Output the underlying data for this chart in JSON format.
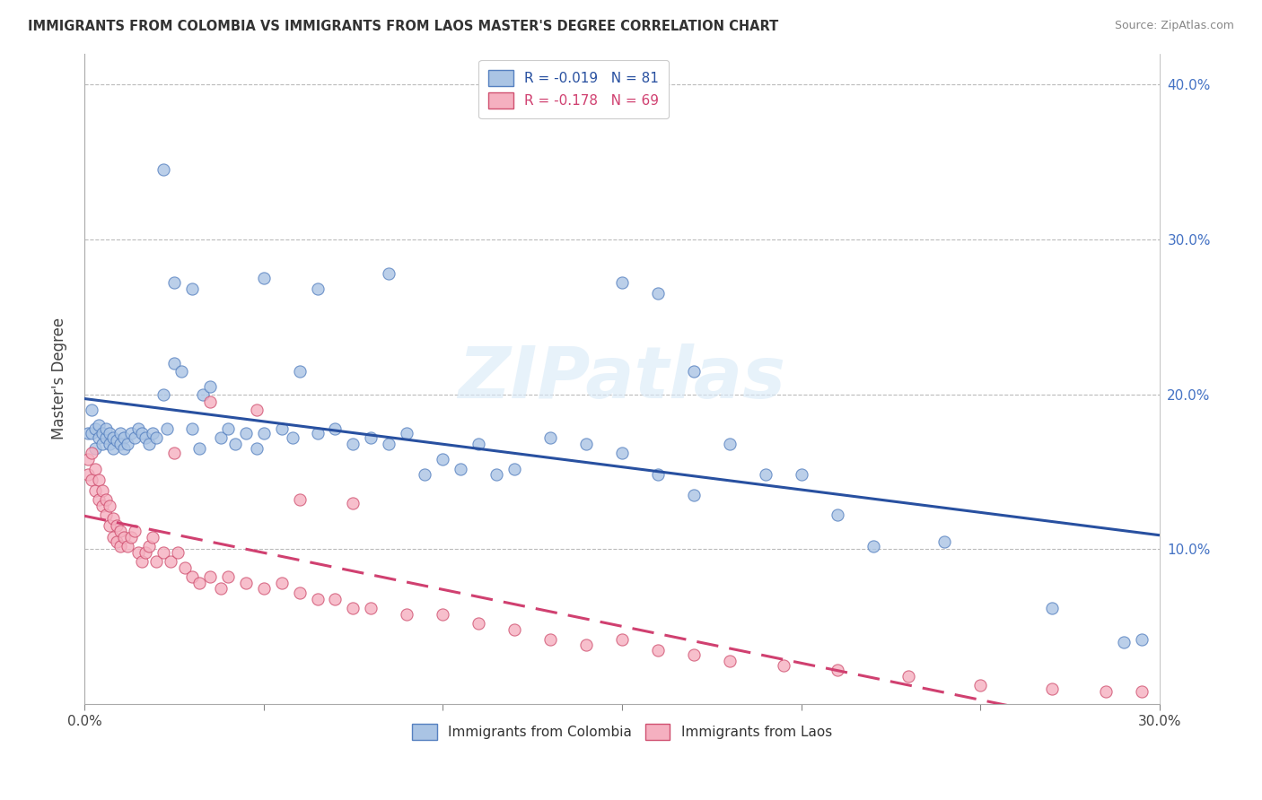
{
  "title": "IMMIGRANTS FROM COLOMBIA VS IMMIGRANTS FROM LAOS MASTER'S DEGREE CORRELATION CHART",
  "source": "Source: ZipAtlas.com",
  "ylabel": "Master's Degree",
  "xlim": [
    0.0,
    0.3
  ],
  "ylim": [
    0.0,
    0.42
  ],
  "colombia_color": "#aac4e4",
  "colombia_edge_color": "#5580c0",
  "laos_color": "#f5b0c0",
  "laos_edge_color": "#d05070",
  "colombia_line_color": "#2850a0",
  "laos_line_color": "#d04070",
  "watermark": "ZIPatlas",
  "colombia_scatter_x": [
    0.001,
    0.002,
    0.002,
    0.003,
    0.003,
    0.004,
    0.004,
    0.005,
    0.005,
    0.006,
    0.006,
    0.007,
    0.007,
    0.008,
    0.008,
    0.009,
    0.01,
    0.01,
    0.011,
    0.011,
    0.012,
    0.013,
    0.014,
    0.015,
    0.016,
    0.017,
    0.018,
    0.019,
    0.02,
    0.022,
    0.023,
    0.025,
    0.027,
    0.03,
    0.032,
    0.033,
    0.035,
    0.038,
    0.04,
    0.042,
    0.045,
    0.048,
    0.05,
    0.055,
    0.058,
    0.06,
    0.065,
    0.07,
    0.075,
    0.08,
    0.085,
    0.09,
    0.095,
    0.1,
    0.105,
    0.11,
    0.115,
    0.12,
    0.13,
    0.14,
    0.15,
    0.16,
    0.17,
    0.18,
    0.19,
    0.2,
    0.21,
    0.22,
    0.24,
    0.27,
    0.05,
    0.065,
    0.03,
    0.025,
    0.085,
    0.15,
    0.16,
    0.17,
    0.295,
    0.29,
    0.022
  ],
  "colombia_scatter_y": [
    0.175,
    0.19,
    0.175,
    0.178,
    0.165,
    0.18,
    0.172,
    0.175,
    0.168,
    0.172,
    0.178,
    0.168,
    0.175,
    0.172,
    0.165,
    0.17,
    0.175,
    0.168,
    0.172,
    0.165,
    0.168,
    0.175,
    0.172,
    0.178,
    0.175,
    0.172,
    0.168,
    0.175,
    0.172,
    0.2,
    0.178,
    0.22,
    0.215,
    0.178,
    0.165,
    0.2,
    0.205,
    0.172,
    0.178,
    0.168,
    0.175,
    0.165,
    0.175,
    0.178,
    0.172,
    0.215,
    0.175,
    0.178,
    0.168,
    0.172,
    0.168,
    0.175,
    0.148,
    0.158,
    0.152,
    0.168,
    0.148,
    0.152,
    0.172,
    0.168,
    0.162,
    0.148,
    0.135,
    0.168,
    0.148,
    0.148,
    0.122,
    0.102,
    0.105,
    0.062,
    0.275,
    0.268,
    0.268,
    0.272,
    0.278,
    0.272,
    0.265,
    0.215,
    0.042,
    0.04,
    0.345
  ],
  "laos_scatter_x": [
    0.001,
    0.001,
    0.002,
    0.002,
    0.003,
    0.003,
    0.004,
    0.004,
    0.005,
    0.005,
    0.006,
    0.006,
    0.007,
    0.007,
    0.008,
    0.008,
    0.009,
    0.009,
    0.01,
    0.01,
    0.011,
    0.012,
    0.013,
    0.014,
    0.015,
    0.016,
    0.017,
    0.018,
    0.019,
    0.02,
    0.022,
    0.024,
    0.026,
    0.028,
    0.03,
    0.032,
    0.035,
    0.038,
    0.04,
    0.045,
    0.05,
    0.055,
    0.06,
    0.065,
    0.07,
    0.075,
    0.08,
    0.09,
    0.1,
    0.11,
    0.12,
    0.13,
    0.14,
    0.15,
    0.16,
    0.17,
    0.18,
    0.195,
    0.21,
    0.23,
    0.25,
    0.27,
    0.285,
    0.295,
    0.025,
    0.035,
    0.048,
    0.06,
    0.075
  ],
  "laos_scatter_y": [
    0.158,
    0.148,
    0.162,
    0.145,
    0.152,
    0.138,
    0.145,
    0.132,
    0.138,
    0.128,
    0.132,
    0.122,
    0.128,
    0.115,
    0.12,
    0.108,
    0.115,
    0.105,
    0.112,
    0.102,
    0.108,
    0.102,
    0.108,
    0.112,
    0.098,
    0.092,
    0.098,
    0.102,
    0.108,
    0.092,
    0.098,
    0.092,
    0.098,
    0.088,
    0.082,
    0.078,
    0.082,
    0.075,
    0.082,
    0.078,
    0.075,
    0.078,
    0.072,
    0.068,
    0.068,
    0.062,
    0.062,
    0.058,
    0.058,
    0.052,
    0.048,
    0.042,
    0.038,
    0.042,
    0.035,
    0.032,
    0.028,
    0.025,
    0.022,
    0.018,
    0.012,
    0.01,
    0.008,
    0.008,
    0.162,
    0.195,
    0.19,
    0.132,
    0.13
  ]
}
